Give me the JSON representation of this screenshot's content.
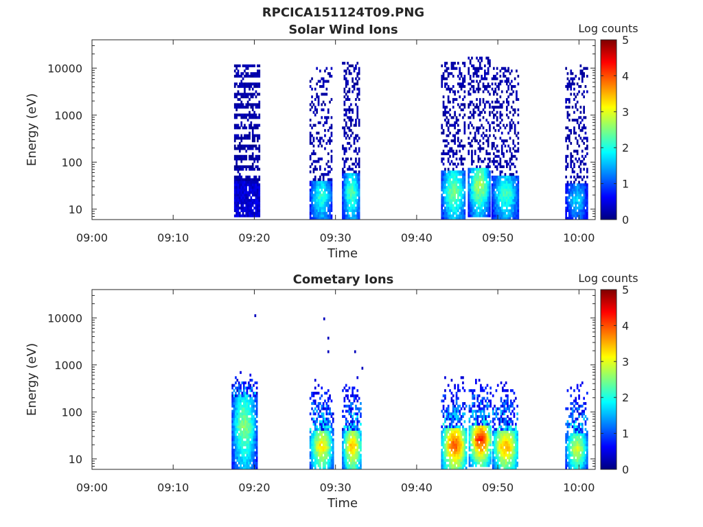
{
  "figure": {
    "title": "RPCICA151124T09.PNG"
  },
  "colormap": {
    "name": "jet",
    "stops": [
      "#00007f",
      "#0000ff",
      "#007fff",
      "#00ffff",
      "#7fff7f",
      "#ffff00",
      "#ff7f00",
      "#ff0000",
      "#7f0000"
    ]
  },
  "chart_data": [
    {
      "type": "heatmap",
      "title": "Solar Wind Ions",
      "xlabel": "Time",
      "ylabel": "Energy (eV)",
      "yscale": "log",
      "x_ticks": [
        "09:00",
        "09:10",
        "09:20",
        "09:30",
        "09:40",
        "09:50",
        "10:00"
      ],
      "x_tick_minutes": [
        0,
        10,
        20,
        30,
        40,
        50,
        60
      ],
      "xlim_minutes": [
        0,
        62
      ],
      "y_ticks": [
        "10",
        "100",
        "1000",
        "10000"
      ],
      "y_tick_values": [
        10,
        100,
        1000,
        10000
      ],
      "ylim": [
        6,
        40000
      ],
      "colorbar": {
        "label": "Log counts",
        "ticks": [
          "0",
          "1",
          "2",
          "3",
          "4",
          "5"
        ],
        "range": [
          0,
          5
        ]
      },
      "bursts": [
        {
          "t_start": 17.5,
          "t_end": 20.5,
          "e_low_log": 1.0,
          "core_top_log": 1.6,
          "scatter_top_log": 4.05,
          "core_max": 0.6,
          "density": 0.85,
          "pattern": "bands"
        },
        {
          "t_start": 26.8,
          "t_end": 29.5,
          "e_low_log": 0.8,
          "core_top_log": 1.6,
          "scatter_top_log": 4.0,
          "core_max": 2.1,
          "density": 0.35,
          "pattern": "scatter"
        },
        {
          "t_start": 30.8,
          "t_end": 33.0,
          "e_low_log": 0.8,
          "core_top_log": 1.75,
          "scatter_top_log": 4.1,
          "core_max": 2.3,
          "density": 0.35,
          "pattern": "scatter"
        },
        {
          "t_start": 43.0,
          "t_end": 46.0,
          "e_low_log": 0.8,
          "core_top_log": 1.8,
          "scatter_top_log": 4.1,
          "core_max": 2.5,
          "density": 0.35,
          "pattern": "scatter"
        },
        {
          "t_start": 46.3,
          "t_end": 49.0,
          "e_low_log": 1.0,
          "core_top_log": 1.85,
          "scatter_top_log": 4.2,
          "core_max": 2.8,
          "density": 0.35,
          "pattern": "scatter"
        },
        {
          "t_start": 49.2,
          "t_end": 52.5,
          "e_low_log": 0.8,
          "core_top_log": 1.7,
          "scatter_top_log": 4.0,
          "core_max": 2.2,
          "density": 0.35,
          "pattern": "scatter"
        },
        {
          "t_start": 58.3,
          "t_end": 61.0,
          "e_low_log": 0.8,
          "core_top_log": 1.5,
          "scatter_top_log": 4.05,
          "core_max": 1.7,
          "density": 0.3,
          "pattern": "scatter"
        }
      ]
    },
    {
      "type": "heatmap",
      "title": "Cometary Ions",
      "xlabel": "Time",
      "ylabel": "Energy (eV)",
      "yscale": "log",
      "x_ticks": [
        "09:00",
        "09:10",
        "09:20",
        "09:30",
        "09:40",
        "09:50",
        "10:00"
      ],
      "x_tick_minutes": [
        0,
        10,
        20,
        30,
        40,
        50,
        60
      ],
      "xlim_minutes": [
        0,
        62
      ],
      "y_ticks": [
        "10",
        "100",
        "1000",
        "10000"
      ],
      "y_tick_values": [
        10,
        100,
        1000,
        10000
      ],
      "ylim": [
        6,
        40000
      ],
      "colorbar": {
        "label": "Log counts",
        "ticks": [
          "0",
          "1",
          "2",
          "3",
          "4",
          "5"
        ],
        "range": [
          0,
          5
        ]
      },
      "bursts": [
        {
          "t_start": 17.2,
          "t_end": 20.2,
          "e_low_log": 0.9,
          "core_top_log": 2.3,
          "scatter_top_log": 2.85,
          "core_max": 2.6,
          "density": 0.9,
          "pattern": "column"
        },
        {
          "t_start": 26.8,
          "t_end": 29.6,
          "e_low_log": 0.8,
          "core_top_log": 1.6,
          "scatter_top_log": 2.7,
          "core_max": 3.3,
          "density": 0.65,
          "pattern": "plume"
        },
        {
          "t_start": 30.8,
          "t_end": 33.2,
          "e_low_log": 0.8,
          "core_top_log": 1.6,
          "scatter_top_log": 2.8,
          "core_max": 3.5,
          "density": 0.65,
          "pattern": "plume"
        },
        {
          "t_start": 43.0,
          "t_end": 46.2,
          "e_low_log": 0.8,
          "core_top_log": 1.65,
          "scatter_top_log": 2.75,
          "core_max": 4.0,
          "density": 0.6,
          "pattern": "plume"
        },
        {
          "t_start": 46.4,
          "t_end": 49.2,
          "e_low_log": 1.0,
          "core_top_log": 1.7,
          "scatter_top_log": 2.85,
          "core_max": 4.3,
          "density": 0.6,
          "pattern": "plume"
        },
        {
          "t_start": 49.3,
          "t_end": 52.5,
          "e_low_log": 0.8,
          "core_top_log": 1.6,
          "scatter_top_log": 2.7,
          "core_max": 3.6,
          "density": 0.6,
          "pattern": "plume"
        },
        {
          "t_start": 58.3,
          "t_end": 61.0,
          "e_low_log": 0.8,
          "core_top_log": 1.5,
          "scatter_top_log": 2.7,
          "core_max": 3.0,
          "density": 0.55,
          "pattern": "plume"
        }
      ],
      "outliers": [
        {
          "t": 20.0,
          "e": 10500,
          "v": 0.3
        },
        {
          "t": 28.5,
          "e": 9000,
          "v": 0.3
        },
        {
          "t": 29.0,
          "e": 3500,
          "v": 0.3
        },
        {
          "t": 32.3,
          "e": 1800,
          "v": 0.3
        },
        {
          "t": 33.2,
          "e": 800,
          "v": 0.3
        },
        {
          "t": 29.0,
          "e": 1800,
          "v": 0.3
        }
      ]
    }
  ]
}
